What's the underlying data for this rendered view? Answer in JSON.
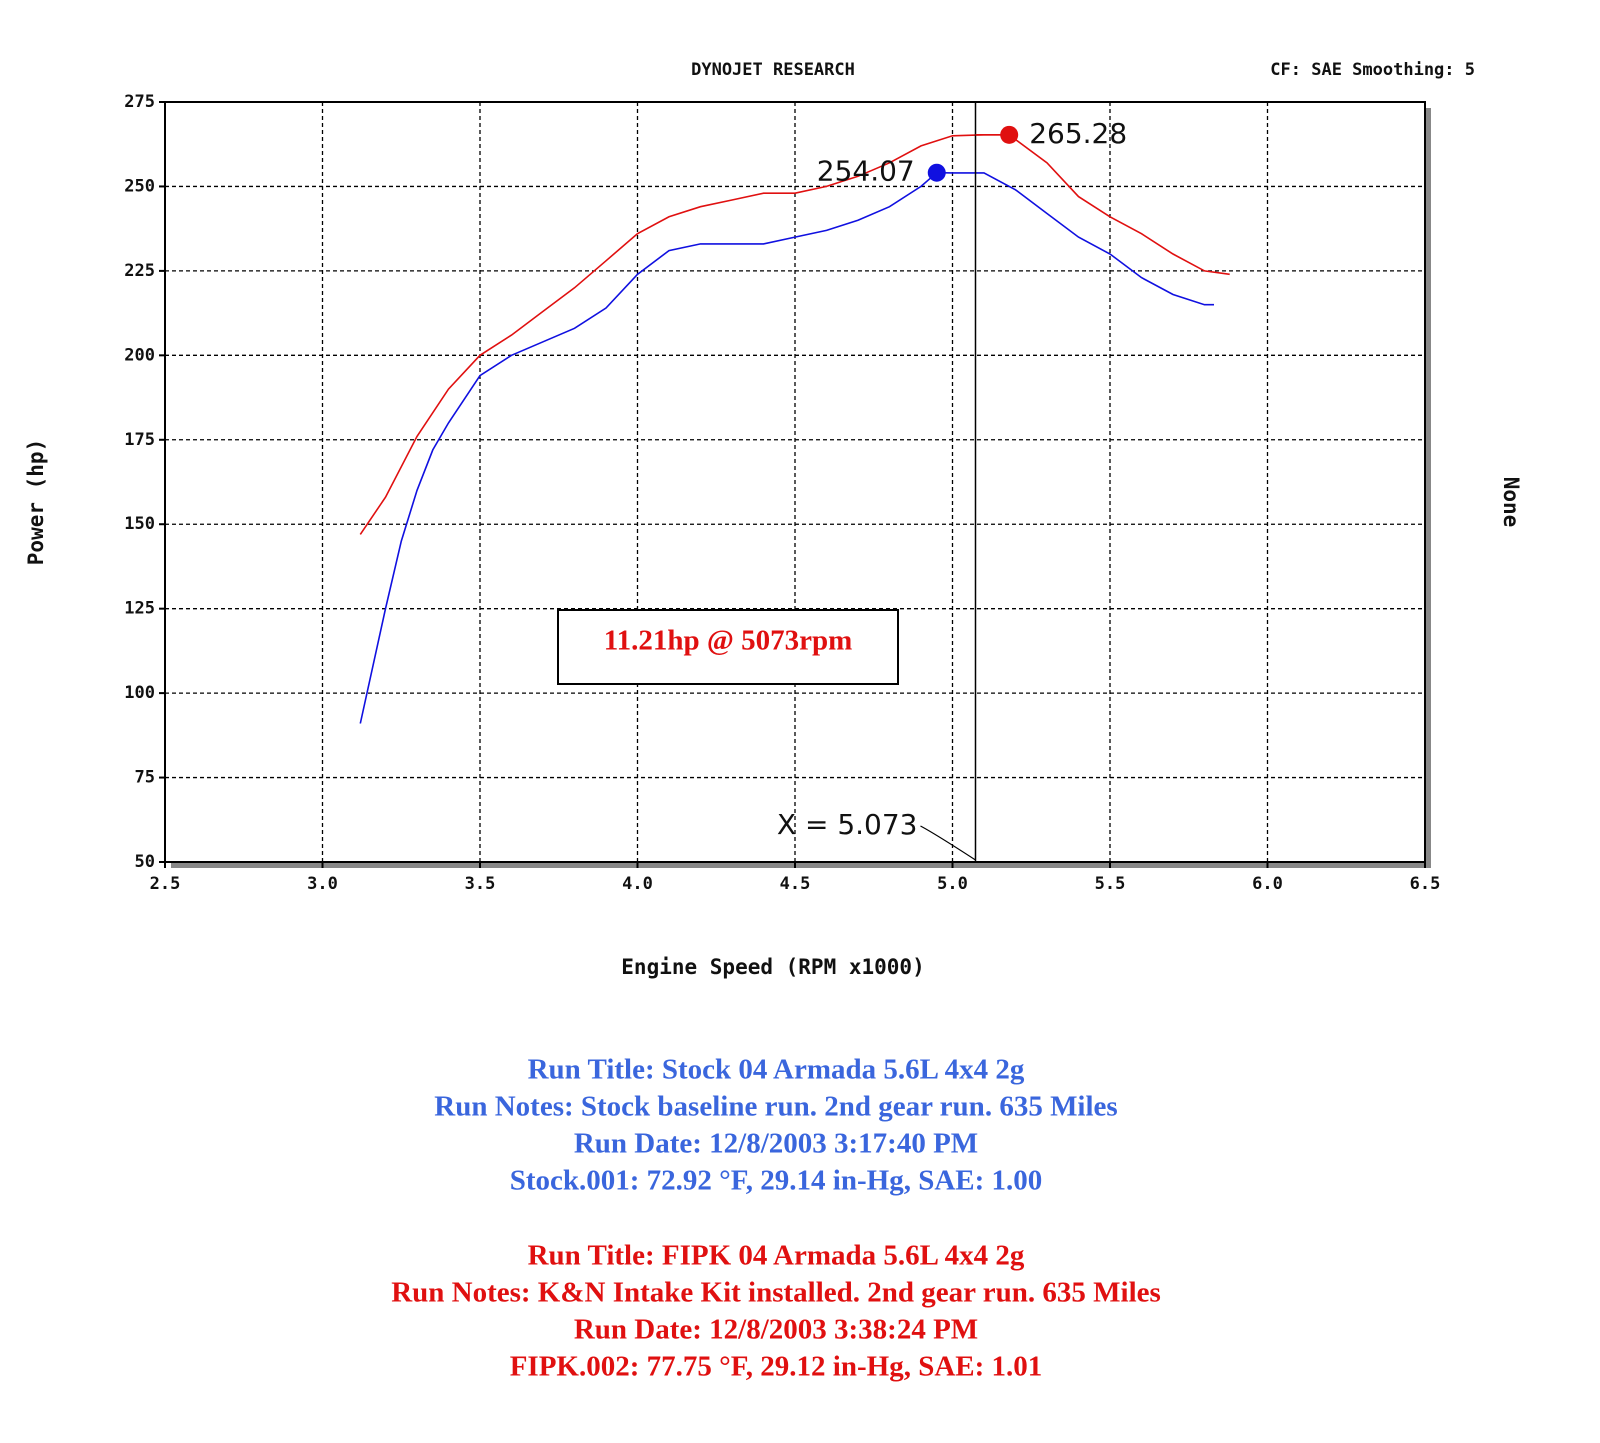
{
  "chart_data": {
    "type": "line",
    "title": "DYNOJET RESEARCH",
    "subtitle": "CF: SAE  Smoothing: 5",
    "x_label": "Engine Speed (RPM x1000)",
    "y_label": "Power (hp)",
    "y2_label": "None",
    "xlim": [
      2.5,
      6.5
    ],
    "xticks": [
      2.5,
      {
        "value": 3,
        "label": "3.0"
      },
      3.5,
      {
        "value": 4,
        "label": "4.0"
      },
      4.5,
      {
        "value": 5,
        "label": "5.0"
      },
      5.5,
      {
        "value": 6,
        "label": "6.0"
      },
      6.5
    ],
    "ylim": [
      50,
      275
    ],
    "yticks": [
      50,
      75,
      100,
      125,
      150,
      175,
      200,
      225,
      250,
      275
    ],
    "grid": true,
    "series": [
      {
        "color": "#1010e0",
        "x": [
          3.12,
          3.2,
          3.25,
          3.3,
          3.35,
          3.4,
          3.5,
          3.6,
          3.7,
          3.8,
          3.9,
          4.0,
          4.1,
          4.2,
          4.3,
          4.4,
          4.5,
          4.6,
          4.7,
          4.8,
          4.9,
          4.95,
          5.0,
          5.1,
          5.2,
          5.3,
          5.4,
          5.5,
          5.6,
          5.7,
          5.8,
          5.83
        ],
        "values": [
          91,
          125,
          145,
          160,
          172,
          180,
          194,
          200,
          204,
          208,
          214,
          224,
          231,
          233,
          233,
          233,
          235,
          237,
          240,
          244,
          250,
          254.07,
          254,
          254,
          249,
          242,
          235,
          230,
          223,
          218,
          215,
          215
        ]
      },
      {
        "color": "#e01010",
        "x": [
          3.12,
          3.2,
          3.3,
          3.4,
          3.5,
          3.6,
          3.7,
          3.8,
          3.9,
          4.0,
          4.1,
          4.2,
          4.3,
          4.4,
          4.5,
          4.6,
          4.7,
          4.8,
          4.9,
          5.0,
          5.1,
          5.18,
          5.3,
          5.4,
          5.5,
          5.6,
          5.7,
          5.8,
          5.88
        ],
        "values": [
          147,
          158,
          176,
          190,
          200,
          206,
          213,
          220,
          228,
          236,
          241,
          244,
          246,
          248,
          248,
          250,
          253,
          257,
          262,
          265,
          265.28,
          265.28,
          257,
          247,
          241,
          236,
          230,
          225,
          224
        ]
      }
    ],
    "peaks": [
      {
        "x": 4.95,
        "y": 254.07,
        "color": "#1010e0"
      },
      {
        "x": 5.18,
        "y": 265.28,
        "color": "#e01010"
      }
    ],
    "cursor": {
      "x": 5.073,
      "label": "X = 5.073"
    },
    "note": "11.21hp @ 5073rpm"
  },
  "run_info": [
    {
      "color": "#3a66dd",
      "lines": [
        "Run Title: Stock 04 Armada 5.6L 4x4 2g",
        "Run Notes: Stock baseline run. 2nd gear run. 635 Miles",
        "Run Date: 12/8/2003 3:17:40 PM",
        "Stock.001: 72.92 °F, 29.14 in-Hg, SAE: 1.00"
      ]
    },
    {
      "color": "#e01010",
      "lines": [
        "Run Title: FIPK 04 Armada 5.6L 4x4 2g",
        "Run Notes: K&N Intake Kit installed. 2nd gear run. 635 Miles",
        "Run Date: 12/8/2003 3:38:24 PM",
        "FIPK.002: 77.75 °F, 29.12 in-Hg, SAE: 1.01"
      ]
    }
  ]
}
